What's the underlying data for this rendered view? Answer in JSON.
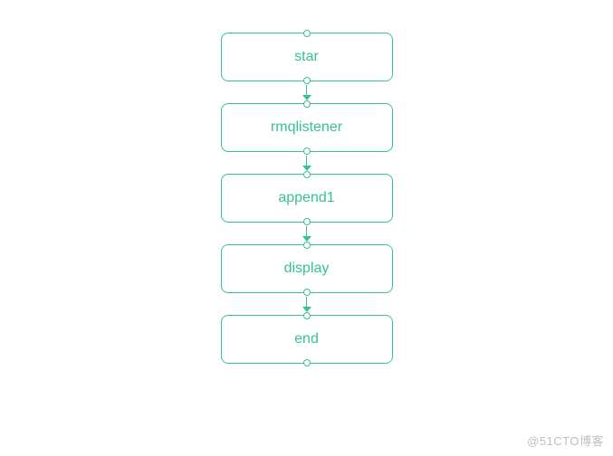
{
  "flowchart": {
    "type": "flowchart",
    "direction": "top-to-bottom",
    "background_color": "#ffffff",
    "node_style": {
      "width": 190,
      "height": 54,
      "border_color": "#34c38f",
      "border_width": 1,
      "border_radius": 8,
      "fill_color": "#ffffff",
      "label_color": "#34c38f",
      "label_fontsize": 16
    },
    "port_style": {
      "diameter": 8,
      "border_color": "#34c38f",
      "border_width": 1,
      "fill_color": "#ffffff"
    },
    "edge_style": {
      "color": "#34c38f",
      "width": 1,
      "gap": 24,
      "arrow_size": 5
    },
    "nodes": [
      {
        "id": "n1",
        "label": "star"
      },
      {
        "id": "n2",
        "label": "rmqlistener"
      },
      {
        "id": "n3",
        "label": "append1"
      },
      {
        "id": "n4",
        "label": "display"
      },
      {
        "id": "n5",
        "label": "end"
      }
    ],
    "edges": [
      {
        "from": "n1",
        "to": "n2"
      },
      {
        "from": "n2",
        "to": "n3"
      },
      {
        "from": "n3",
        "to": "n4"
      },
      {
        "from": "n4",
        "to": "n5"
      }
    ]
  },
  "watermark": {
    "text": "@51CTO博客",
    "color": "#bfbfbf"
  }
}
